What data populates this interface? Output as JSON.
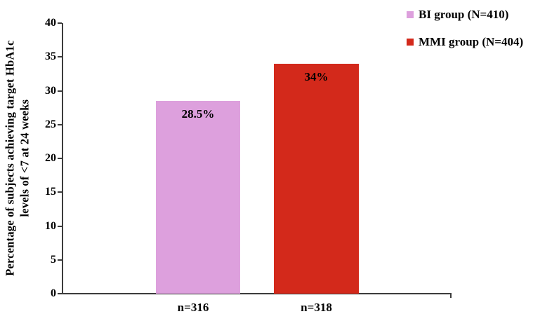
{
  "chart_data": {
    "type": "bar",
    "title": "",
    "xlabel": "",
    "ylabel": "Percentage of subjects achieving target HbA1c levels of <7 at 24 weeks",
    "ylabel_lines": [
      "Percentage of subjects achieving target HbA1c",
      "levels of <7 at 24 weeks"
    ],
    "ylim": [
      0,
      40
    ],
    "yticks": [
      0,
      5,
      10,
      15,
      20,
      25,
      30,
      35,
      40
    ],
    "grid": false,
    "legend_position": "top-right",
    "categories": [
      "n=316",
      "n=318"
    ],
    "bars": [
      {
        "category": "n=316",
        "value": 28.5,
        "value_label": "28.5%",
        "series": "BI group (N=410)",
        "color": "#DDA0DD"
      },
      {
        "category": "n=318",
        "value": 34,
        "value_label": "34%",
        "series": "MMI group (N=404)",
        "color": "#D3291B"
      }
    ],
    "legend": [
      {
        "label": "BI group (N=410)",
        "color": "#DDA0DD"
      },
      {
        "label": "MMI group (N=404)",
        "color": "#D3291B"
      }
    ]
  },
  "colors": {
    "axis": "#3c3c3c",
    "text": "#000000",
    "background": "#ffffff"
  }
}
